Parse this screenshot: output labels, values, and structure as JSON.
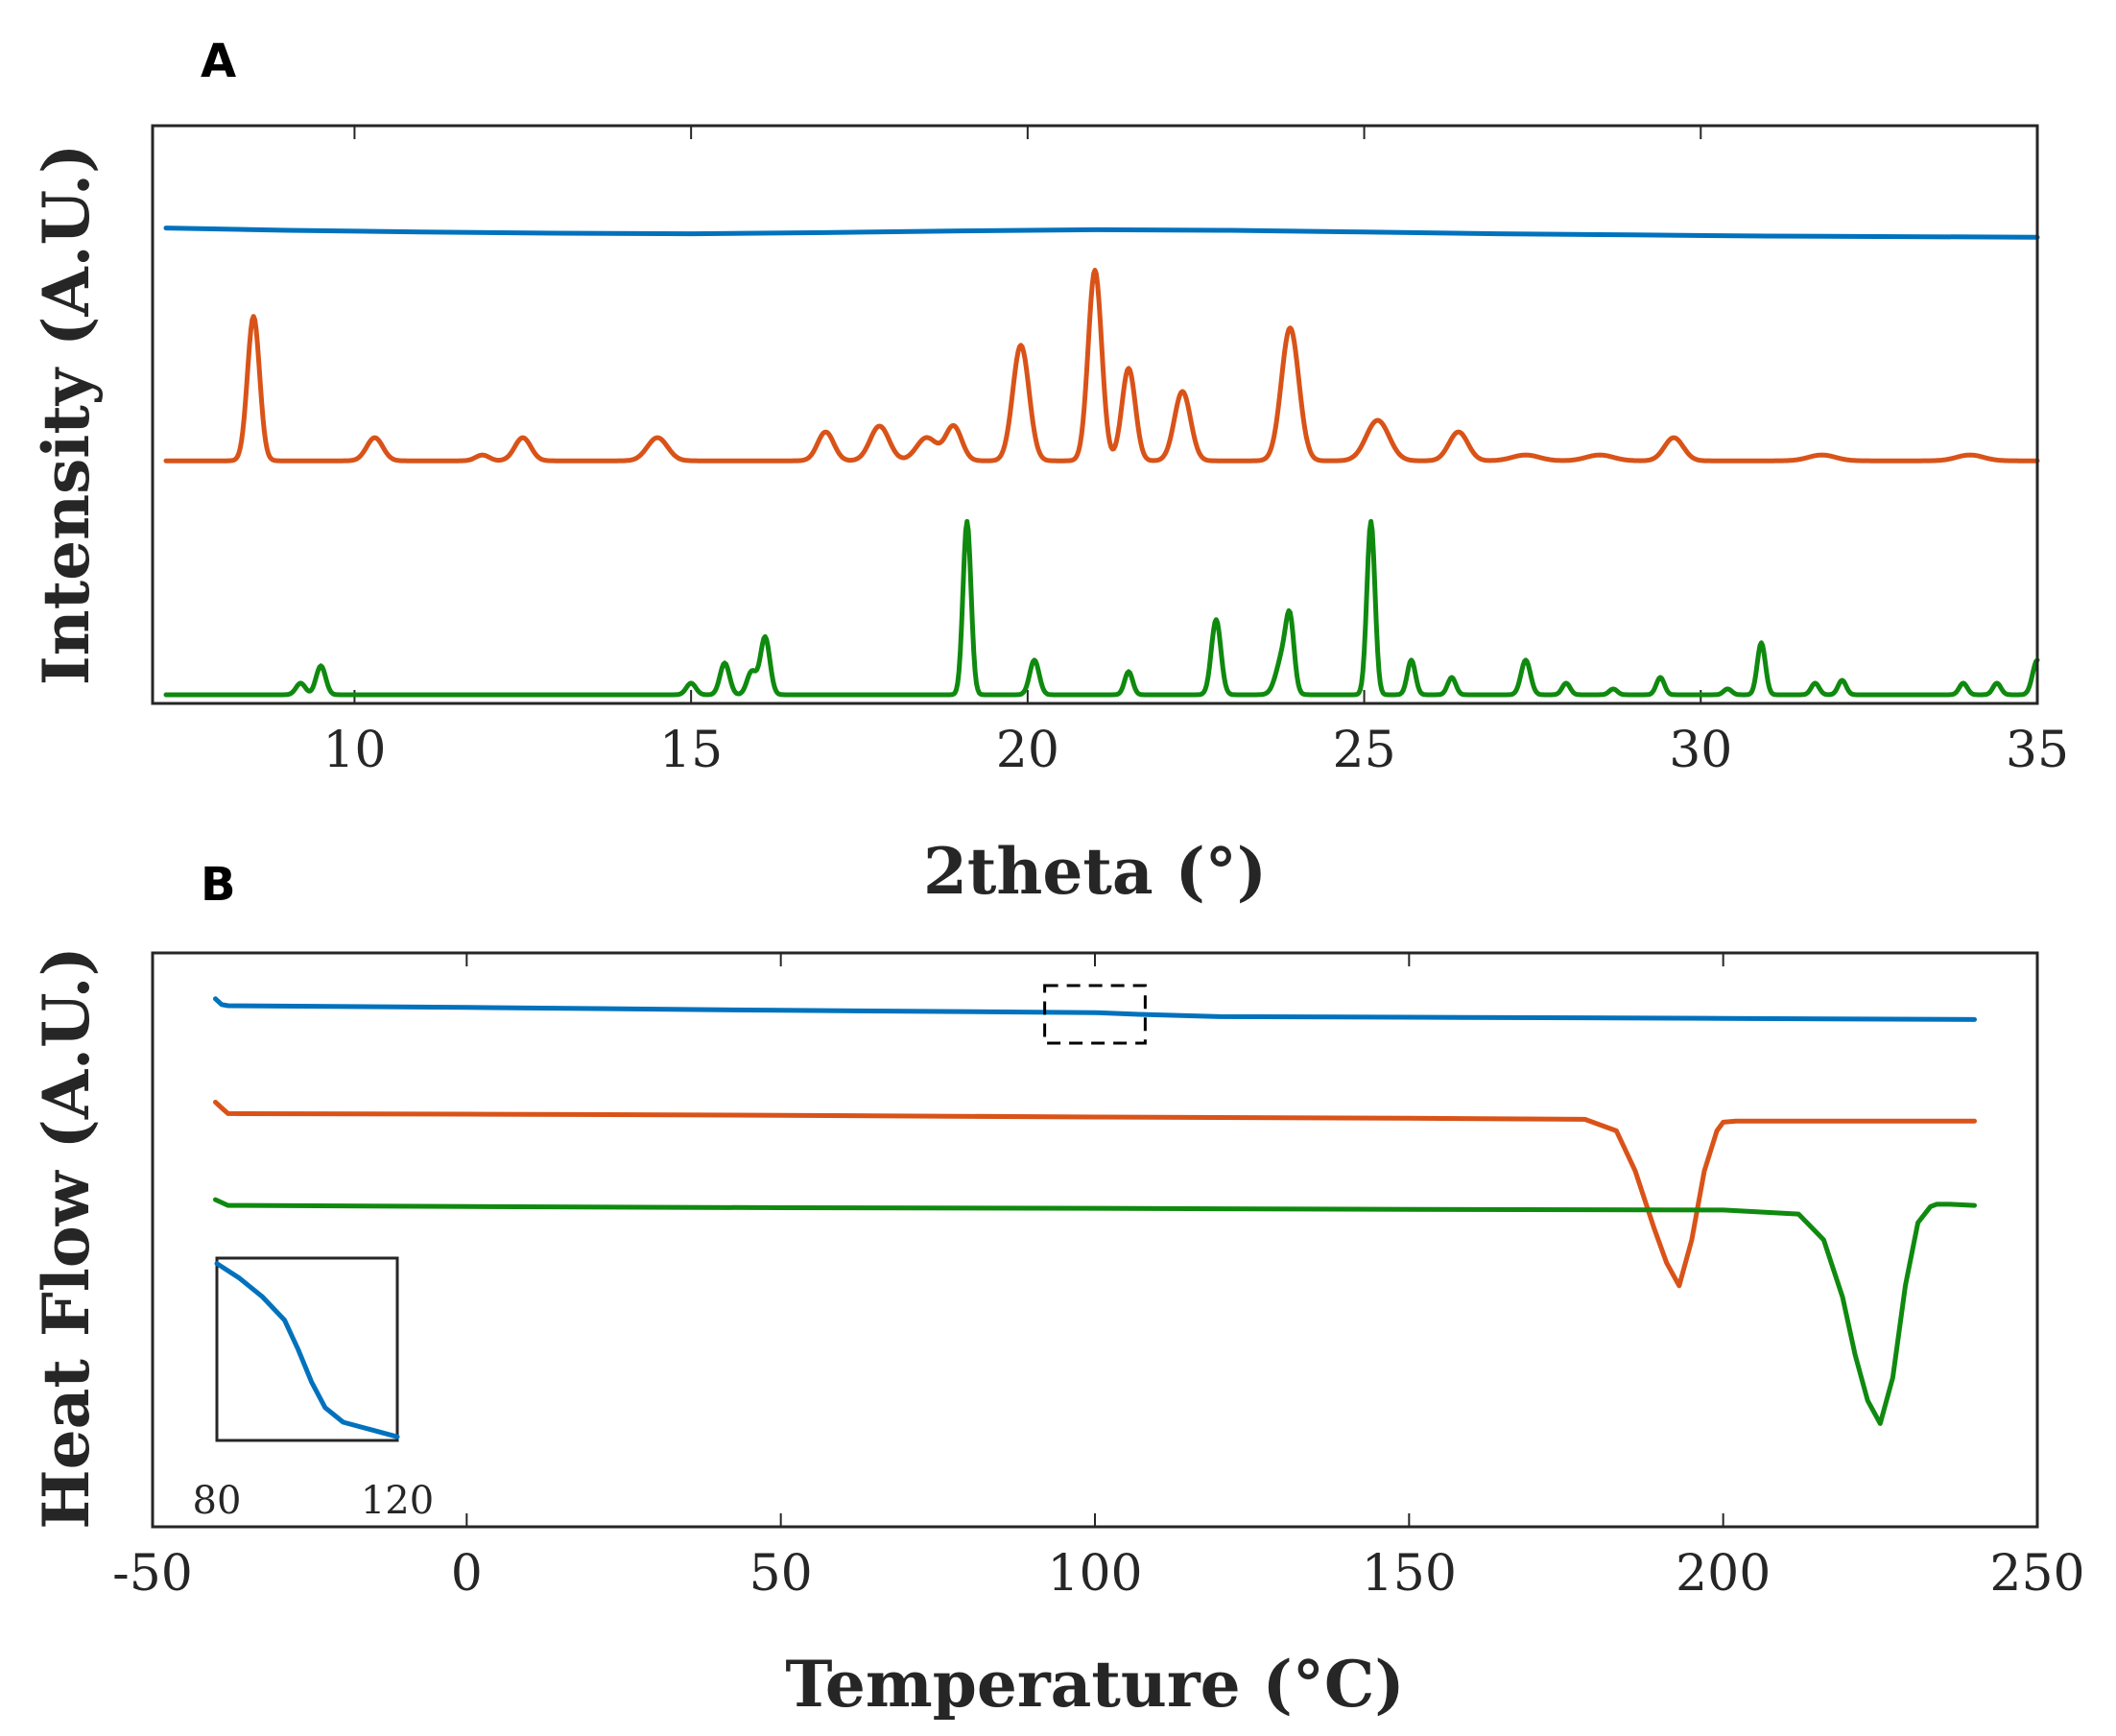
{
  "chart_data": [
    {
      "id": "A",
      "panel_label": "A",
      "type": "line",
      "xlabel": "2theta (°)",
      "ylabel": "Intensity (A.U.)",
      "xlim": [
        7,
        35
      ],
      "ylim": [
        0,
        1
      ],
      "xticks": [
        10,
        15,
        20,
        25,
        30,
        35
      ],
      "xtick_labels": [
        "10",
        "15",
        "20",
        "25",
        "30",
        "35"
      ],
      "grid": false,
      "series": [
        {
          "name": "blue",
          "color": "#0072BD",
          "x": [
            7.2,
            9,
            11,
            13,
            15,
            17,
            19,
            21,
            23,
            25,
            27,
            29,
            31,
            33,
            35
          ],
          "y": [
            0.823,
            0.819,
            0.816,
            0.814,
            0.813,
            0.815,
            0.818,
            0.82,
            0.819,
            0.816,
            0.813,
            0.811,
            0.809,
            0.808,
            0.807
          ]
        },
        {
          "name": "orange",
          "color": "#D95319",
          "baseline": 0.42,
          "x_range": [
            7.2,
            35
          ],
          "peaks": [
            [
              8.5,
              0.25,
              0.09
            ],
            [
              10.3,
              0.04,
              0.12
            ],
            [
              11.9,
              0.01,
              0.1
            ],
            [
              12.5,
              0.04,
              0.12
            ],
            [
              14.5,
              0.04,
              0.15
            ],
            [
              17.0,
              0.05,
              0.12
            ],
            [
              17.8,
              0.06,
              0.14
            ],
            [
              18.5,
              0.04,
              0.15
            ],
            [
              18.9,
              0.06,
              0.12
            ],
            [
              19.9,
              0.2,
              0.12
            ],
            [
              21.0,
              0.33,
              0.1
            ],
            [
              21.5,
              0.16,
              0.1
            ],
            [
              22.3,
              0.12,
              0.12
            ],
            [
              23.9,
              0.23,
              0.13
            ],
            [
              25.2,
              0.07,
              0.17
            ],
            [
              26.4,
              0.05,
              0.14
            ],
            [
              27.4,
              0.01,
              0.2
            ],
            [
              28.5,
              0.01,
              0.2
            ],
            [
              29.6,
              0.04,
              0.14
            ],
            [
              31.8,
              0.01,
              0.2
            ],
            [
              34.0,
              0.01,
              0.2
            ]
          ]
        },
        {
          "name": "green",
          "color": "#0F8A0F",
          "baseline": 0.015,
          "x_range": [
            7.2,
            35
          ],
          "peaks": [
            [
              9.2,
              0.02,
              0.07
            ],
            [
              9.5,
              0.05,
              0.07
            ],
            [
              15.0,
              0.02,
              0.07
            ],
            [
              15.5,
              0.055,
              0.07
            ],
            [
              15.9,
              0.04,
              0.07
            ],
            [
              16.1,
              0.1,
              0.07
            ],
            [
              19.1,
              0.3,
              0.06
            ],
            [
              20.1,
              0.06,
              0.07
            ],
            [
              21.5,
              0.04,
              0.06
            ],
            [
              22.8,
              0.13,
              0.07
            ],
            [
              23.8,
              0.07,
              0.1
            ],
            [
              23.9,
              0.1,
              0.06
            ],
            [
              25.1,
              0.3,
              0.06
            ],
            [
              25.7,
              0.06,
              0.06
            ],
            [
              26.3,
              0.03,
              0.06
            ],
            [
              27.4,
              0.06,
              0.07
            ],
            [
              28.0,
              0.02,
              0.06
            ],
            [
              28.7,
              0.01,
              0.06
            ],
            [
              29.4,
              0.03,
              0.06
            ],
            [
              30.4,
              0.01,
              0.06
            ],
            [
              30.9,
              0.09,
              0.06
            ],
            [
              31.7,
              0.02,
              0.06
            ],
            [
              32.1,
              0.025,
              0.06
            ],
            [
              33.9,
              0.02,
              0.06
            ],
            [
              34.4,
              0.02,
              0.06
            ],
            [
              35.0,
              0.06,
              0.07
            ]
          ]
        }
      ]
    },
    {
      "id": "B",
      "panel_label": "B",
      "type": "line",
      "xlabel": "Temperature (°C)",
      "ylabel": "Heat Flow (A.U.)",
      "xlim": [
        -50,
        250
      ],
      "ylim": [
        0,
        1
      ],
      "xticks": [
        -50,
        0,
        50,
        100,
        150,
        200,
        250
      ],
      "xtick_labels": [
        "-50",
        "0",
        "50",
        "100",
        "150",
        "200",
        "250"
      ],
      "grid": false,
      "series": [
        {
          "name": "blue",
          "color": "#0072BD",
          "x": [
            -40,
            -39,
            -38,
            0,
            50,
            100,
            107,
            120,
            150,
            200,
            240
          ],
          "y": [
            0.92,
            0.91,
            0.908,
            0.905,
            0.9,
            0.896,
            0.893,
            0.889,
            0.888,
            0.886,
            0.884
          ]
        },
        {
          "name": "orange",
          "color": "#D95319",
          "x": [
            -40,
            -39,
            -38,
            0,
            50,
            100,
            150,
            178,
            183,
            186,
            189,
            191,
            193,
            195,
            197,
            199,
            200,
            202,
            240
          ],
          "y": [
            0.74,
            0.73,
            0.72,
            0.719,
            0.717,
            0.714,
            0.712,
            0.71,
            0.69,
            0.62,
            0.52,
            0.46,
            0.42,
            0.5,
            0.62,
            0.69,
            0.705,
            0.707,
            0.707
          ]
        },
        {
          "name": "green",
          "color": "#0F8A0F",
          "x": [
            -40,
            -39,
            -38,
            0,
            50,
            100,
            150,
            200,
            212,
            216,
            219,
            221,
            223,
            225,
            227,
            229,
            231,
            233,
            234,
            236,
            240
          ],
          "y": [
            0.57,
            0.565,
            0.56,
            0.558,
            0.556,
            0.555,
            0.553,
            0.552,
            0.545,
            0.5,
            0.4,
            0.3,
            0.22,
            0.18,
            0.26,
            0.42,
            0.53,
            0.558,
            0.562,
            0.562,
            0.56
          ]
        }
      ],
      "inset": {
        "xlabels": [
          "80",
          "120"
        ],
        "x": [
          80,
          85,
          90,
          95,
          98,
          101,
          104,
          108,
          114,
          120
        ],
        "y": [
          0.97,
          0.89,
          0.79,
          0.66,
          0.5,
          0.32,
          0.18,
          0.1,
          0.06,
          0.02
        ]
      },
      "zoom_box_range": [
        92,
        108
      ]
    }
  ]
}
